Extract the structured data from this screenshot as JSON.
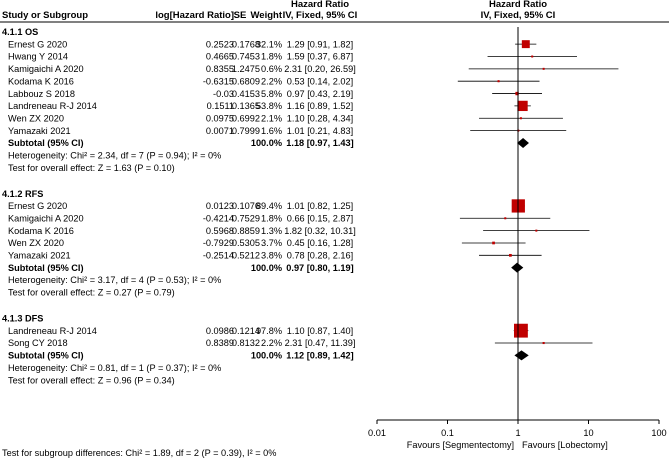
{
  "header": {
    "study": "Study or Subgroup",
    "loghr": "log[Hazard Ratio]",
    "se": "SE",
    "weight": "Weight",
    "ci_title": "Hazard Ratio",
    "ci_subtitle": "IV, Fixed, 95% CI",
    "plot_title": "Hazard Ratio",
    "plot_subtitle": "IV, Fixed, 95% CI"
  },
  "colors": {
    "study_marker": "#c00000",
    "summary_marker": "#000000",
    "line": "#000000"
  },
  "chart_data": {
    "type": "forest",
    "x_scale": "log",
    "xlim": [
      0.01,
      100
    ],
    "x_ticks": [
      "0.01",
      "0.1",
      "1",
      "10",
      "100"
    ],
    "x_tick_values": [
      0.01,
      0.1,
      1,
      10,
      100
    ],
    "favours_left": "Favours [Segmentectomy]",
    "favours_right": "Favours [Lobectomy]",
    "groups": [
      {
        "id": "os",
        "label": "4.1.1 OS",
        "studies": [
          {
            "name": "Ernest G 2020",
            "loghr": "0.2523",
            "se": "0.1768",
            "weight": "32.1%",
            "ci_text": "1.29 [0.91, 1.82]",
            "hr": 1.29,
            "lo": 0.91,
            "hi": 1.82,
            "w": 32.1
          },
          {
            "name": "Hwang Y 2014",
            "loghr": "0.4665",
            "se": "0.7453",
            "weight": "1.8%",
            "ci_text": "1.59 [0.37, 6.87]",
            "hr": 1.59,
            "lo": 0.37,
            "hi": 6.87,
            "w": 1.8
          },
          {
            "name": "Kamigaichi A 2020",
            "loghr": "0.8355",
            "se": "1.2475",
            "weight": "0.6%",
            "ci_text": "2.31 [0.20, 26.59]",
            "hr": 2.31,
            "lo": 0.2,
            "hi": 26.59,
            "w": 0.6
          },
          {
            "name": "Kodama K 2016",
            "loghr": "-0.6315",
            "se": "0.6809",
            "weight": "2.2%",
            "ci_text": "0.53 [0.14, 2.02]",
            "hr": 0.53,
            "lo": 0.14,
            "hi": 2.02,
            "w": 2.2
          },
          {
            "name": "Labbouz S 2018",
            "loghr": "-0.03",
            "se": "0.4153",
            "weight": "5.8%",
            "ci_text": "0.97 [0.43, 2.19]",
            "hr": 0.97,
            "lo": 0.43,
            "hi": 2.19,
            "w": 5.8
          },
          {
            "name": "Landreneau R-J 2014",
            "loghr": "0.1511",
            "se": "0.1365",
            "weight": "53.8%",
            "ci_text": "1.16 [0.89, 1.52]",
            "hr": 1.16,
            "lo": 0.89,
            "hi": 1.52,
            "w": 53.8
          },
          {
            "name": "Wen ZX 2020",
            "loghr": "0.0975",
            "se": "0.6992",
            "weight": "2.1%",
            "ci_text": "1.10 [0.28, 4.34]",
            "hr": 1.1,
            "lo": 0.28,
            "hi": 4.34,
            "w": 2.1
          },
          {
            "name": "Yamazaki 2021",
            "loghr": "0.0071",
            "se": "0.7999",
            "weight": "1.6%",
            "ci_text": "1.01 [0.21, 4.83]",
            "hr": 1.01,
            "lo": 0.21,
            "hi": 4.83,
            "w": 1.6
          }
        ],
        "subtotal": {
          "label": "Subtotal (95% CI)",
          "weight": "100.0%",
          "ci_text": "1.18 [0.97, 1.43]",
          "hr": 1.18,
          "lo": 0.97,
          "hi": 1.43
        },
        "heterogeneity": "Heterogeneity: Chi² = 2.34, df = 7 (P = 0.94); I² = 0%",
        "overall": "Test for overall effect: Z = 1.63 (P = 0.10)"
      },
      {
        "id": "rfs",
        "label": "4.1.2 RFS",
        "studies": [
          {
            "name": "Ernest G 2020",
            "loghr": "0.0123",
            "se": "0.1076",
            "weight": "89.4%",
            "ci_text": "1.01 [0.82, 1.25]",
            "hr": 1.01,
            "lo": 0.82,
            "hi": 1.25,
            "w": 89.4
          },
          {
            "name": "Kamigaichi A 2020",
            "loghr": "-0.4214",
            "se": "0.7529",
            "weight": "1.8%",
            "ci_text": "0.66 [0.15, 2.87]",
            "hr": 0.66,
            "lo": 0.15,
            "hi": 2.87,
            "w": 1.8
          },
          {
            "name": "Kodama K 2016",
            "loghr": "0.5968",
            "se": "0.8859",
            "weight": "1.3%",
            "ci_text": "1.82 [0.32, 10.31]",
            "hr": 1.82,
            "lo": 0.32,
            "hi": 10.31,
            "w": 1.3
          },
          {
            "name": "Wen ZX 2020",
            "loghr": "-0.7929",
            "se": "0.5305",
            "weight": "3.7%",
            "ci_text": "0.45 [0.16, 1.28]",
            "hr": 0.45,
            "lo": 0.16,
            "hi": 1.28,
            "w": 3.7
          },
          {
            "name": "Yamazaki 2021",
            "loghr": "-0.2514",
            "se": "0.5212",
            "weight": "3.8%",
            "ci_text": "0.78 [0.28, 2.16]",
            "hr": 0.78,
            "lo": 0.28,
            "hi": 2.16,
            "w": 3.8
          }
        ],
        "subtotal": {
          "label": "Subtotal (95% CI)",
          "weight": "100.0%",
          "ci_text": "0.97 [0.80, 1.19]",
          "hr": 0.97,
          "lo": 0.8,
          "hi": 1.19
        },
        "heterogeneity": "Heterogeneity: Chi² = 3.17, df = 4 (P = 0.53); I² = 0%",
        "overall": "Test for overall effect: Z = 0.27 (P = 0.79)"
      },
      {
        "id": "dfs",
        "label": "4.1.3 DFS",
        "studies": [
          {
            "name": "Landreneau R-J 2014",
            "loghr": "0.0986",
            "se": "0.1214",
            "weight": "97.8%",
            "ci_text": "1.10 [0.87, 1.40]",
            "hr": 1.1,
            "lo": 0.87,
            "hi": 1.4,
            "w": 97.8
          },
          {
            "name": "Song CY 2018",
            "loghr": "0.8389",
            "se": "0.8132",
            "weight": "2.2%",
            "ci_text": "2.31 [0.47, 11.39]",
            "hr": 2.31,
            "lo": 0.47,
            "hi": 11.39,
            "w": 2.2
          }
        ],
        "subtotal": {
          "label": "Subtotal (95% CI)",
          "weight": "100.0%",
          "ci_text": "1.12 [0.89, 1.42]",
          "hr": 1.12,
          "lo": 0.89,
          "hi": 1.42
        },
        "heterogeneity": "Heterogeneity: Chi² = 0.81, df = 1 (P = 0.37); I² = 0%",
        "overall": "Test for overall effect: Z = 0.96 (P = 0.34)"
      }
    ],
    "subgroup_test": "Test for subgroup differences: Chi² = 1.89, df = 2 (P = 0.39), I² = 0%"
  }
}
